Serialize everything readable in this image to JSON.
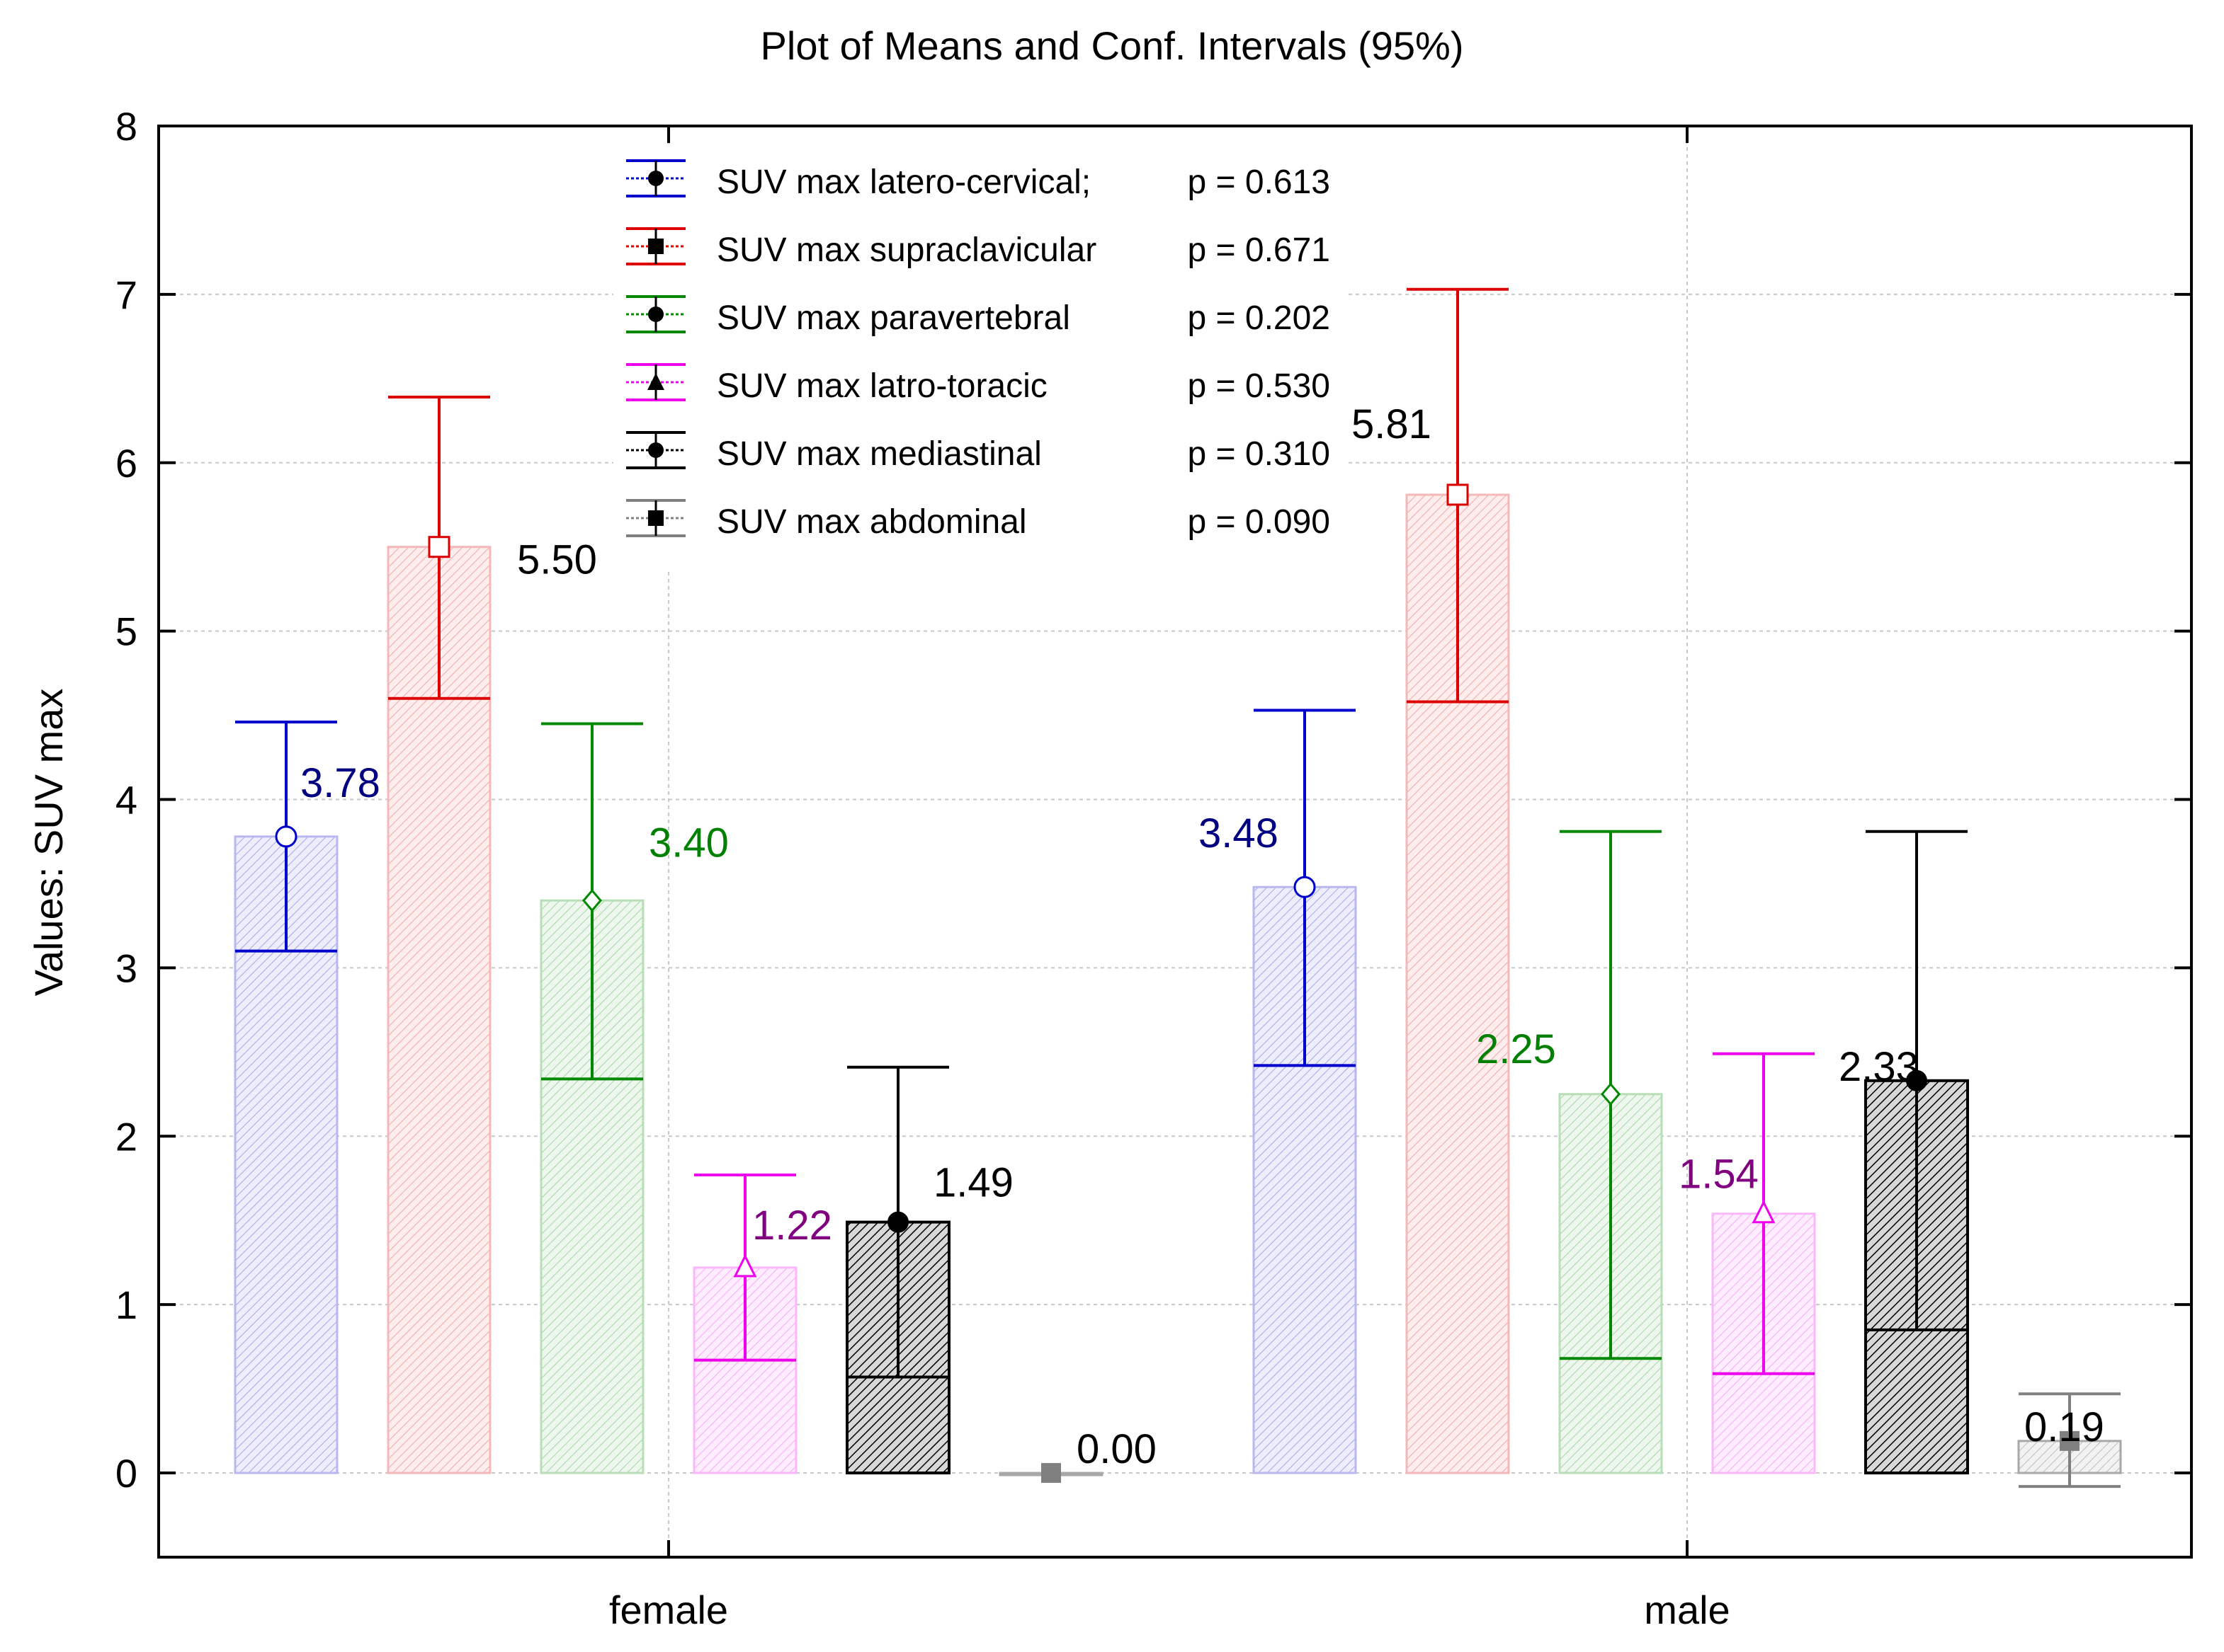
{
  "chart_data": {
    "type": "bar",
    "title": "Plot of Means and Conf. Intervals (95%)",
    "xlabel": "",
    "ylabel": "Values: SUV max",
    "ylim": [
      -0.5,
      8
    ],
    "yticks": [
      0,
      1,
      2,
      3,
      4,
      5,
      6,
      7,
      8
    ],
    "grid": true,
    "legend_position": "top-center",
    "categories": [
      "female",
      "male"
    ],
    "series": [
      {
        "name": "SUV max latero-cervical;",
        "p_label": "p = 0.613",
        "color": "#0000cc",
        "label_color": "#000080",
        "marker": "circle",
        "values": [
          3.78,
          3.48
        ],
        "ci_low": [
          3.1,
          2.42
        ],
        "ci_high": [
          4.46,
          4.53
        ],
        "labels": [
          "3.78",
          "3.48"
        ]
      },
      {
        "name": "SUV max supraclavicular",
        "p_label": "p = 0.671",
        "color": "#dd0000",
        "label_color": "#000000",
        "marker": "square",
        "values": [
          5.5,
          5.81
        ],
        "ci_low": [
          4.6,
          4.58
        ],
        "ci_high": [
          6.39,
          7.03
        ],
        "labels": [
          "5.50",
          "5.81"
        ]
      },
      {
        "name": "SUV max paravertebral",
        "p_label": "p = 0.202",
        "color": "#008800",
        "label_color": "#008000",
        "marker": "diamond",
        "values": [
          3.4,
          2.25
        ],
        "ci_low": [
          2.34,
          0.68
        ],
        "ci_high": [
          4.45,
          3.81
        ],
        "labels": [
          "3.40",
          "2.25"
        ]
      },
      {
        "name": "SUV max latro-toracic",
        "p_label": "p = 0.530",
        "color": "#ee00ee",
        "label_color": "#800080",
        "marker": "triangle",
        "values": [
          1.22,
          1.54
        ],
        "ci_low": [
          0.67,
          0.59
        ],
        "ci_high": [
          1.77,
          2.49
        ],
        "labels": [
          "1.22",
          "1.54"
        ]
      },
      {
        "name": "SUV max mediastinal",
        "p_label": "p =  0.310",
        "color": "#000000",
        "label_color": "#000000",
        "marker": "filled-circle",
        "values": [
          1.49,
          2.33
        ],
        "ci_low": [
          0.57,
          0.85
        ],
        "ci_high": [
          2.41,
          3.81
        ],
        "labels": [
          "1.49",
          "2.33"
        ]
      },
      {
        "name": "SUV max abdominal",
        "p_label": "p = 0.090",
        "color": "#808080",
        "label_color": "#000000",
        "marker": "filled-square",
        "values": [
          0.0,
          0.19
        ],
        "ci_low": [
          0.0,
          -0.08
        ],
        "ci_high": [
          0.0,
          0.47
        ],
        "labels": [
          "0.00",
          "0.19"
        ]
      }
    ]
  }
}
